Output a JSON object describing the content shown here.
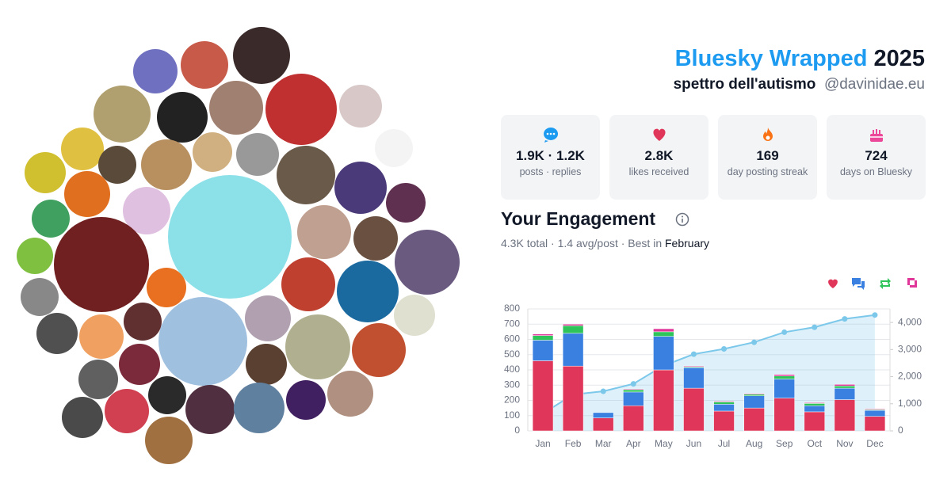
{
  "header": {
    "title": "Bluesky Wrapped",
    "year": "2025",
    "display_name": "spettro dell'autismo",
    "handle": "@davinidae.eu"
  },
  "stats": [
    {
      "value": "1.9K · 1.2K",
      "label": "posts · replies"
    },
    {
      "value": "2.8K",
      "label": "likes received"
    },
    {
      "value": "169",
      "label": "day posting streak"
    },
    {
      "value": "724",
      "label": "days on Bluesky"
    }
  ],
  "engagement": {
    "title": "Your Engagement",
    "summary": "4.3K total · 1.4 avg/post · Best in",
    "best_month": "February"
  },
  "chart_data": {
    "type": "bar",
    "stacked": true,
    "categories": [
      "Jan",
      "Feb",
      "Mar",
      "Apr",
      "May",
      "Jun",
      "Jul",
      "Aug",
      "Sep",
      "Oct",
      "Nov",
      "Dec"
    ],
    "series": [
      {
        "color": "#e0365a",
        "values": [
          460,
          425,
          85,
          165,
          400,
          280,
          130,
          150,
          215,
          125,
          205,
          95
        ]
      },
      {
        "color": "#3a80e0",
        "values": [
          135,
          215,
          35,
          90,
          220,
          135,
          45,
          80,
          125,
          40,
          75,
          40
        ]
      },
      {
        "color": "#2ec45a",
        "values": [
          30,
          50,
          0,
          15,
          30,
          5,
          15,
          10,
          20,
          15,
          15,
          5
        ]
      },
      {
        "color": "#e0369a",
        "values": [
          10,
          10,
          0,
          5,
          20,
          5,
          5,
          5,
          10,
          5,
          10,
          5
        ]
      },
      {
        "type": "line",
        "axis": "y2",
        "color": "#7cc8ea",
        "values": [
          640,
          1340,
          1460,
          1735,
          2405,
          2830,
          3025,
          3270,
          3640,
          3825,
          4130,
          4275
        ]
      }
    ],
    "ylim": [
      0,
      800
    ],
    "yticks": [
      0,
      100,
      200,
      300,
      400,
      500,
      600,
      700,
      800
    ],
    "y2lim": [
      0,
      4500
    ],
    "y2ticks": [
      0,
      {
        "value": 1000,
        "label": "1,000"
      },
      {
        "value": 2000,
        "label": "2,000"
      },
      {
        "value": 3000,
        "label": "3,000"
      },
      {
        "value": 4000,
        "label": "4,000"
      }
    ],
    "grid": true,
    "legend": "top-right"
  }
}
